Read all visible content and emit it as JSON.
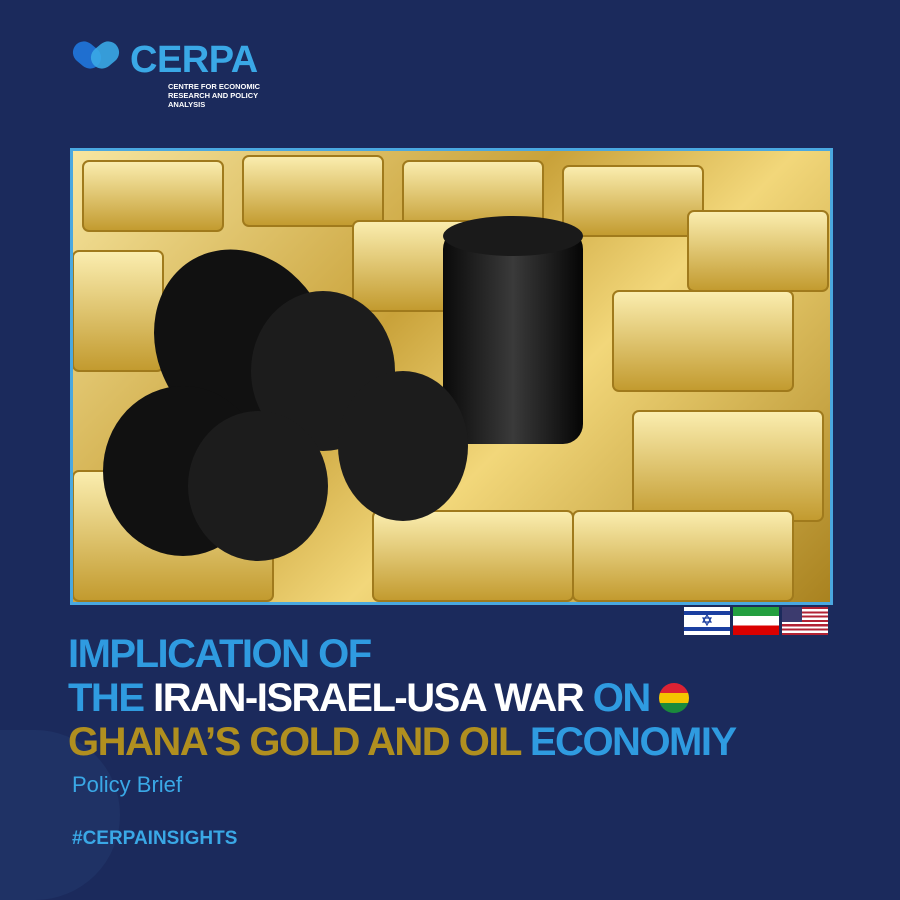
{
  "logo": {
    "name": "CERPA",
    "subtitle": "CENTRE FOR ECONOMIC RESEARCH AND POLICY ANALYSIS"
  },
  "image": {
    "description_icon": "gold-bars-and-oil-barrels-photo"
  },
  "flags": [
    "israel-flag",
    "iran-flag",
    "usa-flag"
  ],
  "title": {
    "line1": "IMPLICATION OF",
    "line2_a": "THE",
    "line2_b": "IRAN-ISRAEL-USA WAR",
    "line2_c": "ON",
    "line3_a": "GHANA’S GOLD AND OIL",
    "line3_b": "ECONOMIY"
  },
  "subtitle": "Policy Brief",
  "hashtag": "#CERPAINSIGHTS",
  "colors": {
    "background": "#1b2a5c",
    "accent_blue": "#2f9be0",
    "gold": "#b08f1f"
  }
}
